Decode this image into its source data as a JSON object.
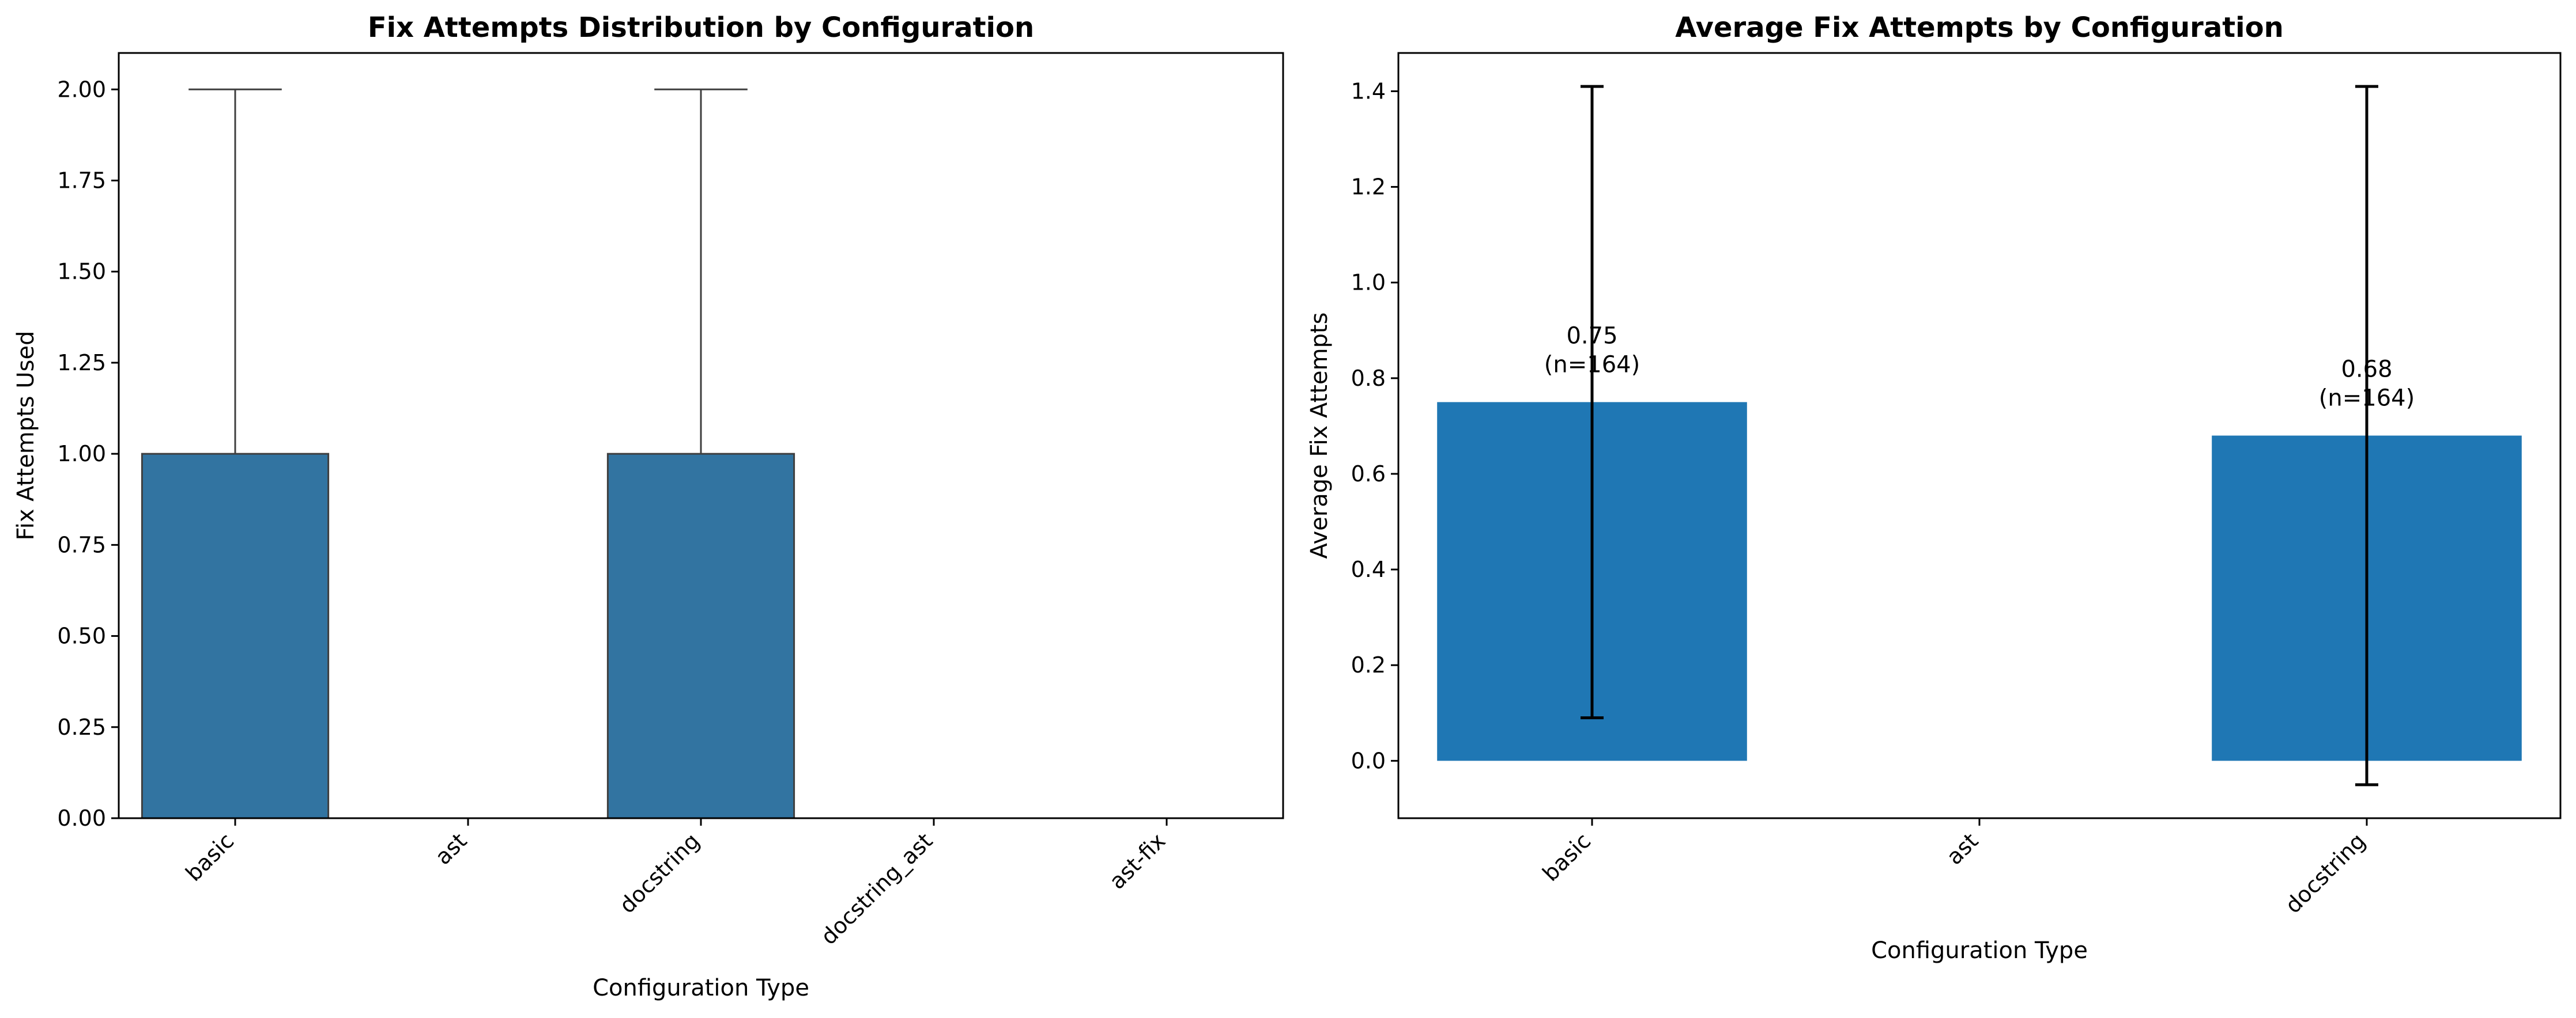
{
  "chart_data": [
    {
      "type": "box",
      "title": "Fix Attempts Distribution by Configuration",
      "xlabel": "Configuration Type",
      "ylabel": "Fix Attempts Used",
      "ylim": [
        0,
        2.1
      ],
      "yticks": [
        0,
        0.25,
        0.5,
        0.75,
        1.0,
        1.25,
        1.5,
        1.75,
        2.0
      ],
      "ytick_labels": [
        "0.00",
        "0.25",
        "0.50",
        "0.75",
        "1.00",
        "1.25",
        "1.50",
        "1.75",
        "2.00"
      ],
      "categories": [
        "basic",
        "ast",
        "docstring",
        "docstring_ast",
        "ast-fix"
      ],
      "boxes": [
        {
          "category": "basic",
          "q1": 0,
          "median": 0,
          "q3": 1,
          "whisker_low": 0,
          "whisker_high": 2
        },
        {
          "category": "ast",
          "q1": null,
          "median": null,
          "q3": null,
          "whisker_low": null,
          "whisker_high": null
        },
        {
          "category": "docstring",
          "q1": 0,
          "median": 0,
          "q3": 1,
          "whisker_low": 0,
          "whisker_high": 2
        },
        {
          "category": "docstring_ast",
          "q1": null,
          "median": null,
          "q3": null,
          "whisker_low": null,
          "whisker_high": null
        },
        {
          "category": "ast-fix",
          "q1": null,
          "median": null,
          "q3": null,
          "whisker_low": null,
          "whisker_high": null
        }
      ],
      "color": "#3274a1",
      "grid": false
    },
    {
      "type": "bar",
      "title": "Average Fix Attempts by Configuration",
      "xlabel": "Configuration Type",
      "ylabel": "Average Fix Attempts",
      "ylim": [
        -0.12,
        1.48
      ],
      "yticks": [
        0,
        0.2,
        0.4,
        0.6,
        0.8,
        1.0,
        1.2,
        1.4
      ],
      "ytick_labels": [
        "0.0",
        "0.2",
        "0.4",
        "0.6",
        "0.8",
        "1.0",
        "1.2",
        "1.4"
      ],
      "categories": [
        "basic",
        "ast",
        "docstring"
      ],
      "values": [
        0.75,
        null,
        0.68
      ],
      "errors": [
        0.66,
        null,
        0.73
      ],
      "bar_labels": [
        {
          "value": "0.75",
          "n": "(n=164)"
        },
        null,
        {
          "value": "0.68",
          "n": "(n=164)"
        }
      ],
      "color": "#1f77b4",
      "grid": false
    }
  ]
}
